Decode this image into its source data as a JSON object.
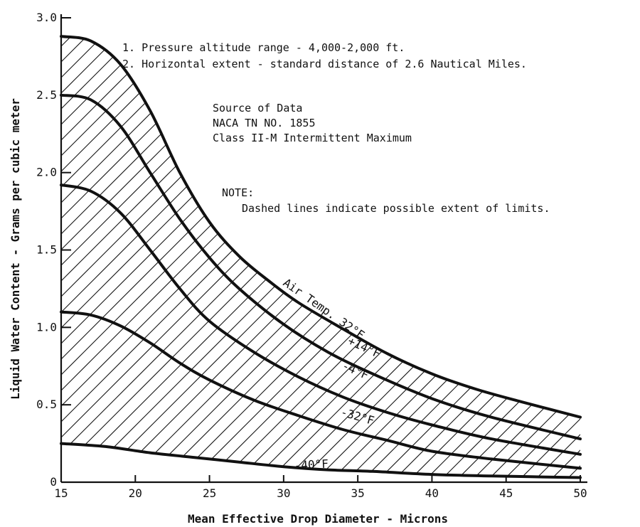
{
  "chart_data": {
    "type": "line",
    "title": "",
    "xlabel": "Mean Effective Drop Diameter - Microns",
    "ylabel": "Liquid Water Content - Grams per cubic meter",
    "xlim": [
      15,
      50
    ],
    "ylim": [
      0,
      3.0
    ],
    "x_ticks": [
      "15",
      "20",
      "25",
      "30",
      "35",
      "40",
      "45",
      "50"
    ],
    "y_ticks": [
      "0",
      "0.5",
      "1.0",
      "1.5",
      "2.0",
      "2.5",
      "3.0"
    ],
    "grid": false,
    "legend": "none",
    "hatched_region": "between the 32°F curve and the -40°F curve",
    "series": [
      {
        "name": "Air Temp. 32°F",
        "label_text": "Air Temp. 32°F",
        "x": [
          15,
          17,
          19,
          21,
          23,
          25,
          27,
          29,
          31,
          34,
          37,
          40,
          43,
          46,
          50
        ],
        "y": [
          2.88,
          2.85,
          2.7,
          2.4,
          2.0,
          1.68,
          1.46,
          1.3,
          1.16,
          0.99,
          0.83,
          0.7,
          0.6,
          0.52,
          0.42
        ]
      },
      {
        "name": "+14°F",
        "label_text": "+14°F",
        "x": [
          15,
          17,
          19,
          21,
          23,
          25,
          27,
          30,
          33,
          36,
          40,
          44,
          50
        ],
        "y": [
          2.5,
          2.47,
          2.3,
          2.0,
          1.7,
          1.45,
          1.25,
          1.02,
          0.84,
          0.7,
          0.54,
          0.42,
          0.28
        ]
      },
      {
        "name": "-4°F",
        "label_text": "-4°F",
        "x": [
          15,
          17,
          19,
          21,
          23,
          25,
          28,
          31,
          34,
          37,
          40,
          44,
          50
        ],
        "y": [
          1.92,
          1.88,
          1.74,
          1.5,
          1.25,
          1.04,
          0.84,
          0.68,
          0.55,
          0.45,
          0.37,
          0.28,
          0.18
        ]
      },
      {
        "name": "-32°F",
        "label_text": "-32°F",
        "x": [
          15,
          17,
          19,
          21,
          23,
          25,
          28,
          31,
          34,
          37,
          40,
          44,
          50
        ],
        "y": [
          1.1,
          1.08,
          1.01,
          0.9,
          0.77,
          0.66,
          0.53,
          0.43,
          0.34,
          0.27,
          0.2,
          0.15,
          0.09
        ]
      },
      {
        "name": "-40°F",
        "label_text": "-40°F",
        "x": [
          15,
          18,
          21,
          24,
          27,
          30,
          33,
          36,
          40,
          44,
          50
        ],
        "y": [
          0.25,
          0.23,
          0.19,
          0.16,
          0.13,
          0.1,
          0.08,
          0.07,
          0.05,
          0.04,
          0.03
        ]
      }
    ],
    "notes": [
      "1. Pressure altitude range - 4,000-2,000 ft.",
      "2. Horizontal extent - standard distance of 2.6 Nautical Miles."
    ],
    "source": [
      "Source of Data",
      "NACA TN NO. 1855",
      "Class II-M Intermittent Maximum"
    ],
    "note_heading": "NOTE:",
    "note_body": "Dashed lines indicate possible extent of limits."
  }
}
